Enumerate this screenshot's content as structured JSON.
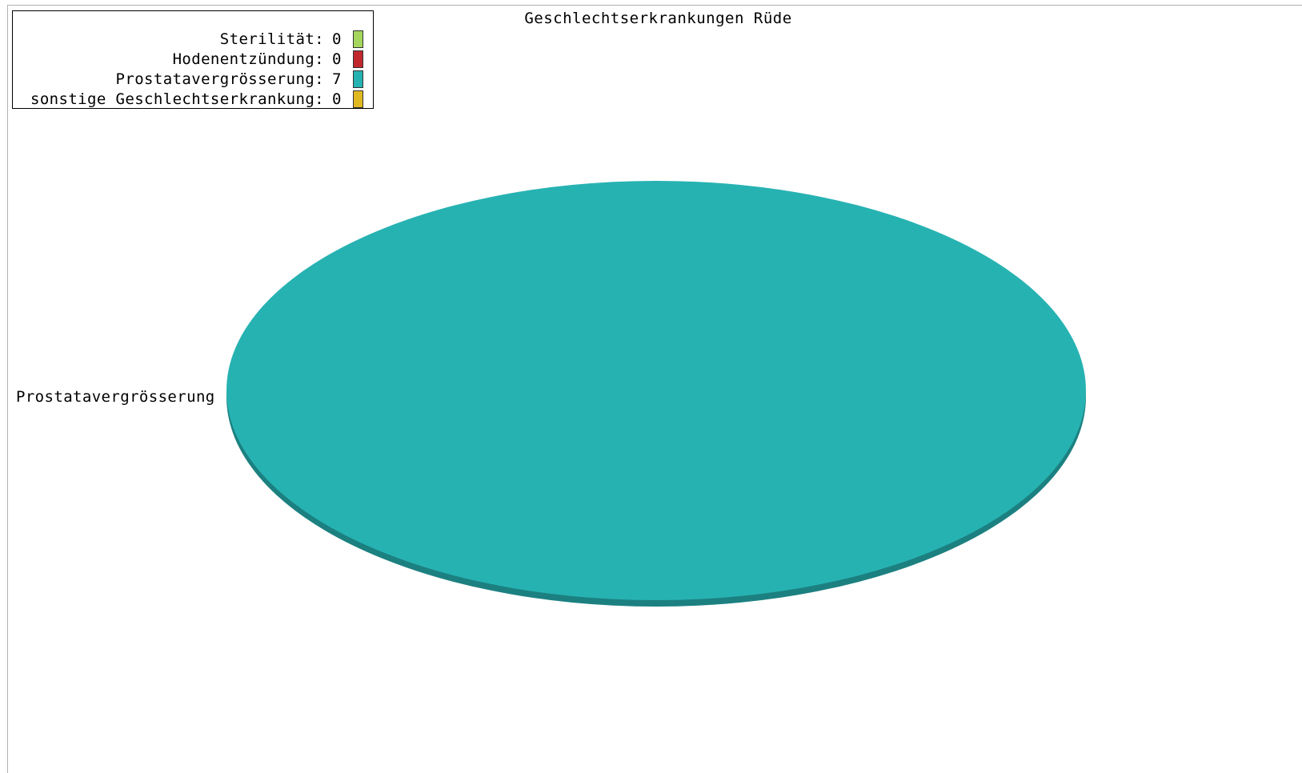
{
  "chart_data": {
    "type": "pie",
    "title": "Geschlechtserkrankungen Rüde",
    "categories": [
      "Sterilität",
      "Hodenentzündung",
      "Prostatavergrösserung",
      "sonstige Geschlechtserkrankung"
    ],
    "values": [
      0,
      0,
      7,
      0
    ],
    "colors": [
      "#a4d65e",
      "#c0282d",
      "#27b2b2",
      "#e0b820"
    ],
    "slice_labels": [
      "Prostatavergrösserung"
    ],
    "legend_placement": "top-left",
    "style": "3d"
  },
  "legend": {
    "items": [
      {
        "label": "Sterilität:",
        "value": "0",
        "color": "#a4d65e"
      },
      {
        "label": "Hodenentzündung:",
        "value": "0",
        "color": "#c0282d"
      },
      {
        "label": "Prostatavergrösserung:",
        "value": "7",
        "color": "#27b2b2"
      },
      {
        "label": "sonstige Geschlechtserkrankung:",
        "value": "0",
        "color": "#e0b820"
      }
    ]
  }
}
